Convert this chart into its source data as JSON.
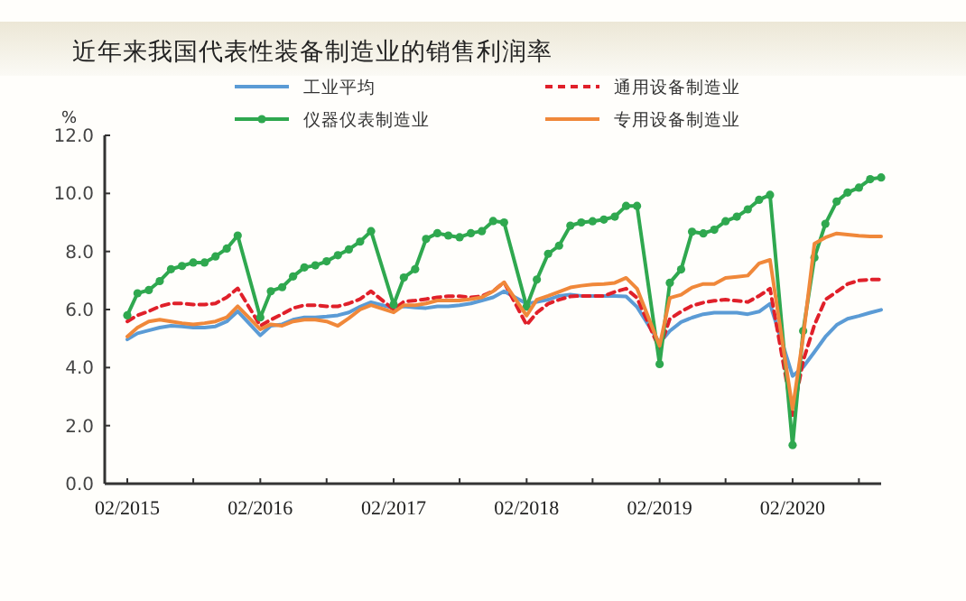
{
  "chart_data": {
    "type": "line",
    "title": "近年来我国代表性装备制造业的销售利润率",
    "ylabel": "%",
    "x": [
      "2015-02",
      "2015-03",
      "2015-04",
      "2015-05",
      "2015-06",
      "2015-07",
      "2015-08",
      "2015-09",
      "2015-10",
      "2015-11",
      "2015-12",
      "2016-02",
      "2016-03",
      "2016-04",
      "2016-05",
      "2016-06",
      "2016-07",
      "2016-08",
      "2016-09",
      "2016-10",
      "2016-11",
      "2016-12",
      "2017-02",
      "2017-03",
      "2017-04",
      "2017-05",
      "2017-06",
      "2017-07",
      "2017-08",
      "2017-09",
      "2017-10",
      "2017-11",
      "2017-12",
      "2018-02",
      "2018-03",
      "2018-04",
      "2018-05",
      "2018-06",
      "2018-07",
      "2018-08",
      "2018-09",
      "2018-10",
      "2018-11",
      "2018-12",
      "2019-02",
      "2019-03",
      "2019-04",
      "2019-05",
      "2019-06",
      "2019-07",
      "2019-08",
      "2019-09",
      "2019-10",
      "2019-11",
      "2019-12",
      "2020-02",
      "2020-03",
      "2020-04",
      "2020-05",
      "2020-06",
      "2020-07",
      "2020-08",
      "2020-09",
      "2020-10"
    ],
    "series": [
      {
        "name": "工业平均",
        "color": "#5b9bd5",
        "line_style": "solid",
        "marker": "none",
        "values": [
          4.97,
          5.18,
          5.28,
          5.38,
          5.44,
          5.42,
          5.38,
          5.38,
          5.42,
          5.59,
          5.94,
          5.11,
          5.44,
          5.49,
          5.65,
          5.73,
          5.73,
          5.76,
          5.8,
          5.9,
          6.1,
          6.25,
          6.05,
          6.11,
          6.07,
          6.05,
          6.11,
          6.11,
          6.15,
          6.21,
          6.31,
          6.42,
          6.63,
          6.2,
          6.26,
          6.34,
          6.47,
          6.51,
          6.47,
          6.47,
          6.47,
          6.47,
          6.45,
          6.09,
          4.85,
          5.26,
          5.57,
          5.72,
          5.84,
          5.89,
          5.89,
          5.89,
          5.84,
          5.93,
          6.2,
          3.71,
          4.02,
          4.54,
          5.06,
          5.47,
          5.68,
          5.78,
          5.89,
          5.99
        ]
      },
      {
        "name": "通用设备制造业",
        "color": "#e0202a",
        "line_style": "dashed",
        "marker": "none",
        "values": [
          5.59,
          5.8,
          5.94,
          6.11,
          6.21,
          6.21,
          6.17,
          6.17,
          6.21,
          6.42,
          6.73,
          5.44,
          5.65,
          5.84,
          6.05,
          6.15,
          6.15,
          6.11,
          6.11,
          6.21,
          6.36,
          6.63,
          6.0,
          6.27,
          6.31,
          6.36,
          6.42,
          6.46,
          6.46,
          6.42,
          6.46,
          6.63,
          6.94,
          5.47,
          5.89,
          6.2,
          6.34,
          6.45,
          6.47,
          6.47,
          6.47,
          6.61,
          6.72,
          6.4,
          4.64,
          5.68,
          5.93,
          6.13,
          6.24,
          6.3,
          6.34,
          6.3,
          6.26,
          6.47,
          6.72,
          2.36,
          4.23,
          5.47,
          6.34,
          6.61,
          6.88,
          7.0,
          7.03,
          7.03
        ]
      },
      {
        "name": "仪器仪表制造业",
        "color": "#2fa84f",
        "line_style": "solid",
        "marker": "circle",
        "values": [
          5.8,
          6.56,
          6.67,
          6.98,
          7.39,
          7.5,
          7.62,
          7.62,
          7.83,
          8.1,
          8.55,
          5.73,
          6.63,
          6.77,
          7.14,
          7.45,
          7.52,
          7.66,
          7.87,
          8.07,
          8.34,
          8.7,
          6.17,
          7.1,
          7.39,
          8.43,
          8.63,
          8.55,
          8.49,
          8.63,
          8.7,
          9.05,
          9.0,
          6.1,
          7.03,
          7.92,
          8.2,
          8.89,
          9.0,
          9.04,
          9.1,
          9.2,
          9.57,
          9.57,
          4.12,
          6.92,
          7.38,
          8.68,
          8.62,
          8.75,
          9.04,
          9.2,
          9.45,
          9.78,
          9.95,
          1.33,
          5.26,
          7.79,
          8.95,
          9.72,
          10.03,
          10.2,
          10.49,
          10.55
        ]
      },
      {
        "name": "专用设备制造业",
        "color": "#f0883a",
        "line_style": "solid",
        "marker": "none",
        "values": [
          5.07,
          5.38,
          5.59,
          5.65,
          5.59,
          5.53,
          5.49,
          5.53,
          5.59,
          5.73,
          6.11,
          5.32,
          5.49,
          5.44,
          5.59,
          5.65,
          5.65,
          5.59,
          5.44,
          5.7,
          6.0,
          6.15,
          5.9,
          6.15,
          6.15,
          6.21,
          6.31,
          6.31,
          6.31,
          6.36,
          6.42,
          6.63,
          6.94,
          5.79,
          6.34,
          6.47,
          6.61,
          6.76,
          6.82,
          6.86,
          6.88,
          6.92,
          7.09,
          6.72,
          4.75,
          6.4,
          6.51,
          6.76,
          6.88,
          6.88,
          7.09,
          7.13,
          7.17,
          7.59,
          7.71,
          2.57,
          5.06,
          8.27,
          8.48,
          8.62,
          8.58,
          8.54,
          8.52,
          8.52
        ]
      }
    ],
    "xlim": [
      "2014-12",
      "2020-10"
    ],
    "xticks": [
      {
        "value": "2015-02",
        "label": "02/2015"
      },
      {
        "value": "2015-08",
        "label": null
      },
      {
        "value": "2016-02",
        "label": "02/2016"
      },
      {
        "value": "2016-08",
        "label": null
      },
      {
        "value": "2017-02",
        "label": "02/2017"
      },
      {
        "value": "2017-08",
        "label": null
      },
      {
        "value": "2018-02",
        "label": "02/2018"
      },
      {
        "value": "2018-08",
        "label": null
      },
      {
        "value": "2019-02",
        "label": "02/2019"
      },
      {
        "value": "2019-08",
        "label": null
      },
      {
        "value": "2020-02",
        "label": "02/2020"
      },
      {
        "value": "2020-08",
        "label": null
      }
    ],
    "ylim": [
      0,
      12
    ],
    "yticks": [
      {
        "value": 0,
        "label": "0.0"
      },
      {
        "value": 2,
        "label": "2.0"
      },
      {
        "value": 4,
        "label": "4.0"
      },
      {
        "value": 6,
        "label": "6.0"
      },
      {
        "value": 8,
        "label": "8.0"
      },
      {
        "value": 10,
        "label": "10.0"
      },
      {
        "value": 12,
        "label": "12.0"
      }
    ],
    "grid": false,
    "legend": "top"
  }
}
